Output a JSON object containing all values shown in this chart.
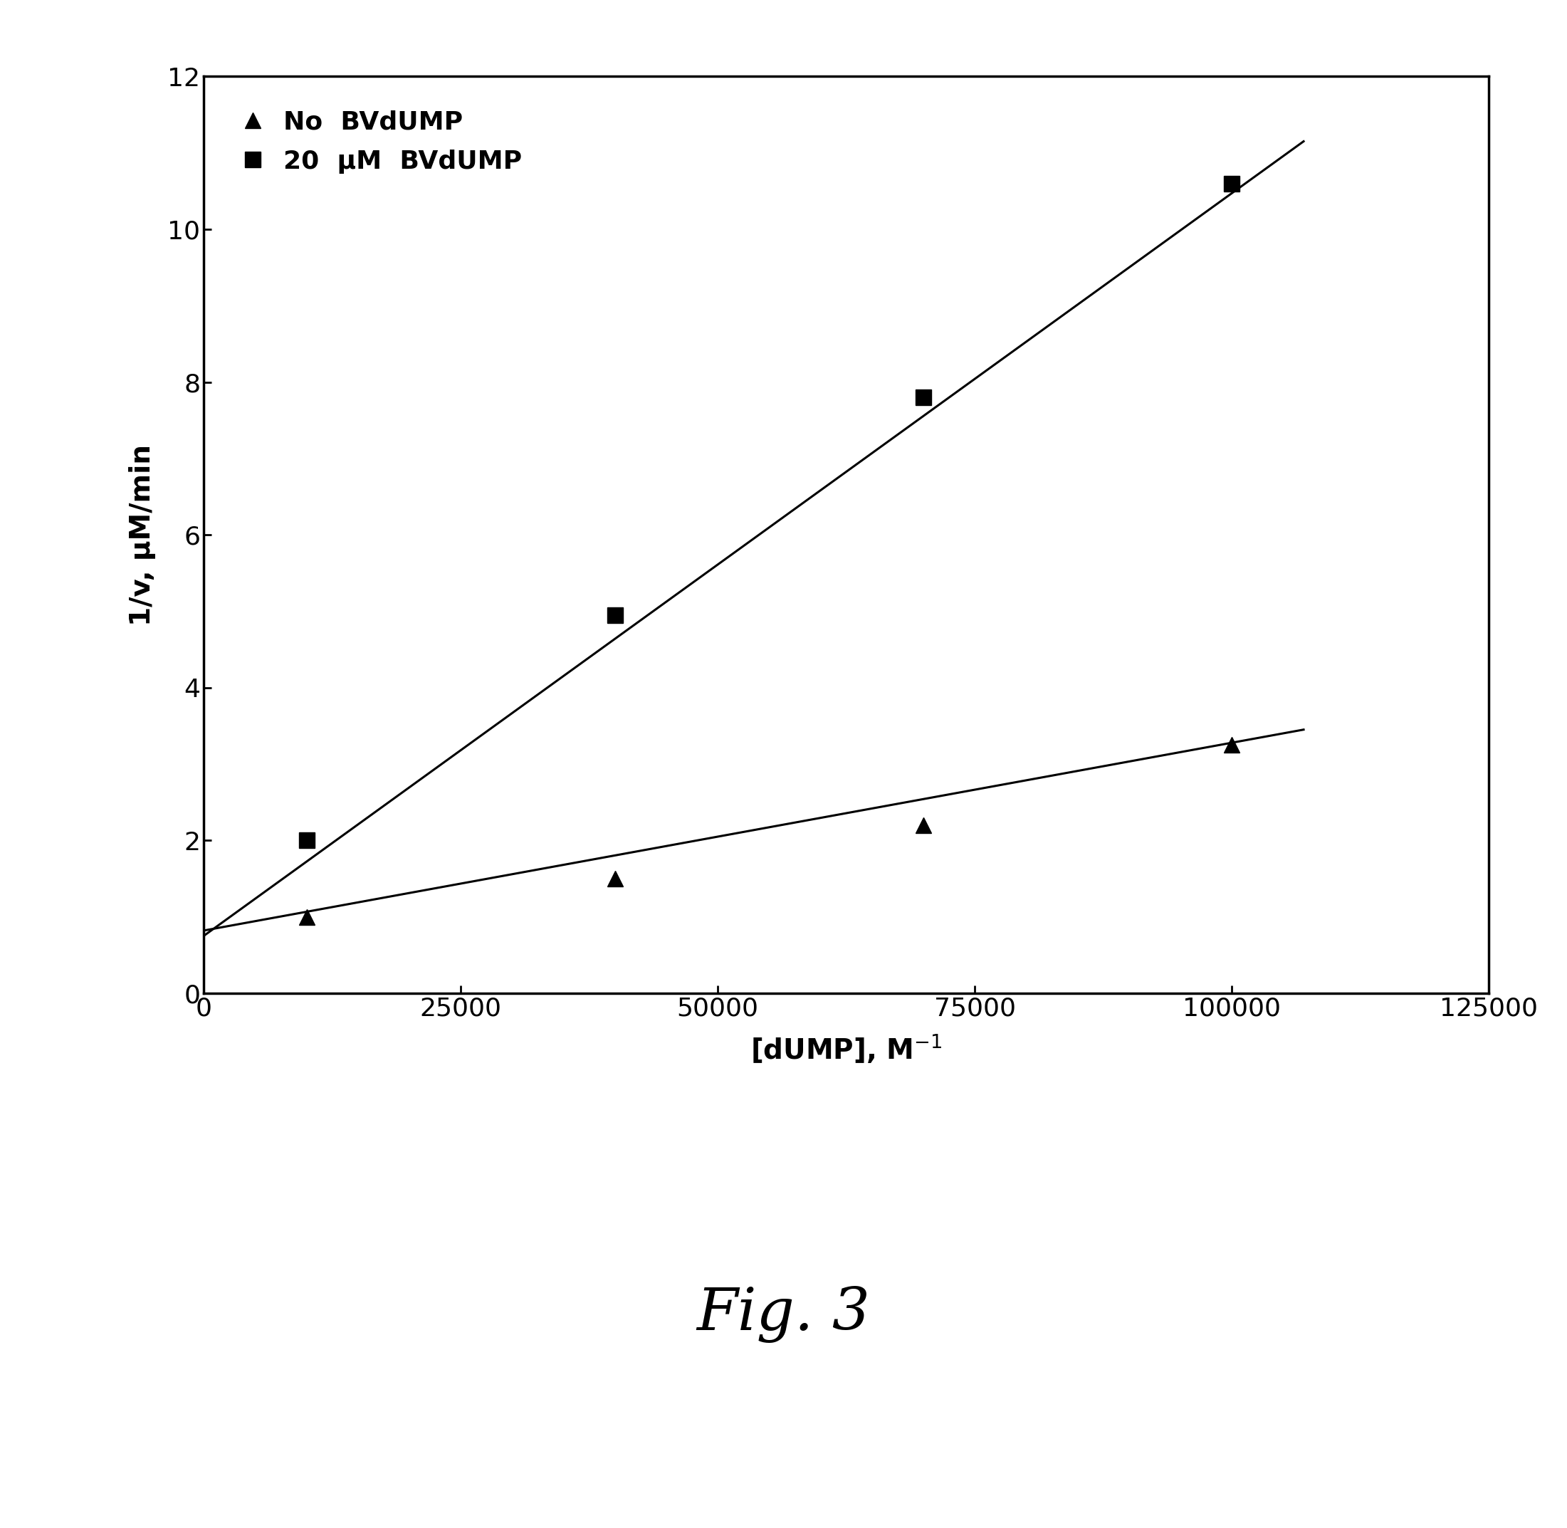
{
  "series1_label": "No  BVdUMP",
  "series2_label": "20  μM  BVdUMP",
  "series1_x": [
    10000,
    40000,
    70000,
    100000
  ],
  "series1_y": [
    1.0,
    1.5,
    2.2,
    3.25
  ],
  "series2_x": [
    10000,
    40000,
    70000,
    100000
  ],
  "series2_y": [
    2.0,
    4.95,
    7.8,
    10.6
  ],
  "series1_line_x": [
    0,
    107000
  ],
  "series1_line_y": [
    0.82,
    3.45
  ],
  "series2_line_x": [
    0,
    107000
  ],
  "series2_line_y": [
    0.75,
    11.15
  ],
  "xlabel": "[dUMP], M$^{-1}$",
  "ylabel": "1/v, μM/min",
  "xlim": [
    0,
    125000
  ],
  "ylim": [
    0,
    12
  ],
  "xticks": [
    0,
    25000,
    50000,
    75000,
    100000,
    125000
  ],
  "xtick_labels": [
    "0",
    "25000",
    "50000",
    "75000",
    "100000",
    "125000"
  ],
  "yticks": [
    0,
    2,
    4,
    6,
    8,
    10,
    12
  ],
  "figure_caption": "Fig. 3",
  "marker1": "^",
  "marker2": "s",
  "color": "#000000",
  "background_color": "#ffffff",
  "fontsize_ticks": 26,
  "fontsize_labels": 28,
  "fontsize_legend": 26,
  "fontsize_caption": 60,
  "linewidth": 2.2,
  "markersize": 16
}
